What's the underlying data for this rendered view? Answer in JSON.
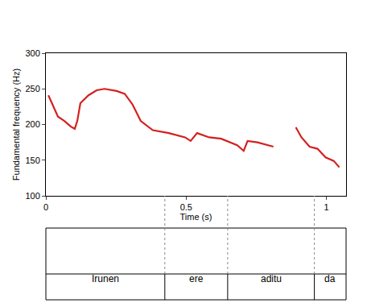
{
  "chart_data": {
    "type": "line",
    "x_label": "Time (s)",
    "y_label": "Fundamental frequency (Hz)",
    "x": [
      0.009,
      0.023,
      0.043,
      0.066,
      0.089,
      0.103,
      0.112,
      0.123,
      0.152,
      0.181,
      0.209,
      0.252,
      0.281,
      0.309,
      0.338,
      0.381,
      0.438,
      0.496,
      0.516,
      0.539,
      0.582,
      0.625,
      0.653,
      0.682,
      0.705,
      0.719,
      0.754,
      0.797,
      0.811,
      0.85,
      0.891,
      0.911,
      0.94,
      0.968,
      0.997,
      1.026,
      1.046
    ],
    "values": [
      241,
      228,
      211,
      205,
      197,
      194,
      205,
      230,
      241,
      248,
      250,
      247,
      243,
      228,
      205,
      192,
      188,
      182,
      177,
      188,
      182,
      180,
      176,
      171,
      163,
      177,
      175,
      171,
      169,
      null,
      196,
      182,
      169,
      166,
      154,
      149,
      140
    ],
    "color": "#d42020",
    "xlim": [
      0,
      1.07
    ],
    "ylim": [
      100,
      300
    ],
    "xticks": [
      0,
      0.5,
      1
    ],
    "yticks": [
      100,
      150,
      200,
      250,
      300
    ],
    "grid": false,
    "tier": {
      "boundaries": [
        0.424,
        0.648,
        0.957
      ],
      "labels": [
        "Irunen",
        "ere",
        "aditu",
        "da"
      ]
    }
  }
}
